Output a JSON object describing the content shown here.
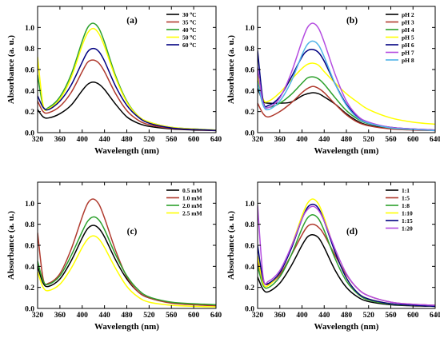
{
  "figure": {
    "background": "#ffffff"
  },
  "chart_data": [
    {
      "type": "line",
      "annotation": "(a)",
      "xlabel": "Wavelength (nm)",
      "ylabel": "Absorbance (a. u.)",
      "xlim": [
        320,
        640
      ],
      "ylim": [
        0,
        1.2
      ],
      "xticks": [
        320,
        360,
        400,
        440,
        480,
        520,
        560,
        600,
        640
      ],
      "yticks": [
        0.0,
        0.2,
        0.4,
        0.6,
        0.8,
        1.0
      ],
      "legend_position": "top-right",
      "grid": false,
      "series": [
        {
          "legend_value": "30",
          "legend_unit": "C",
          "color": "#000000",
          "x": [
            320,
            330,
            340,
            360,
            380,
            400,
            410,
            420,
            430,
            440,
            460,
            480,
            500,
            520,
            560,
            600,
            640
          ],
          "y": [
            0.22,
            0.15,
            0.14,
            0.18,
            0.26,
            0.4,
            0.46,
            0.48,
            0.46,
            0.41,
            0.27,
            0.15,
            0.09,
            0.06,
            0.035,
            0.025,
            0.02
          ]
        },
        {
          "legend_value": "35",
          "legend_unit": "C",
          "color": "#b03a2e",
          "x": [
            320,
            330,
            340,
            360,
            380,
            400,
            410,
            420,
            430,
            440,
            460,
            480,
            500,
            520,
            560,
            600,
            640
          ],
          "y": [
            0.3,
            0.2,
            0.19,
            0.25,
            0.38,
            0.58,
            0.67,
            0.69,
            0.66,
            0.58,
            0.37,
            0.21,
            0.12,
            0.075,
            0.04,
            0.028,
            0.02
          ]
        },
        {
          "legend_value": "40",
          "legend_unit": "C",
          "color": "#2ca02c",
          "x": [
            320,
            330,
            340,
            360,
            380,
            400,
            410,
            420,
            430,
            440,
            460,
            480,
            500,
            520,
            560,
            600,
            640
          ],
          "y": [
            0.55,
            0.25,
            0.24,
            0.34,
            0.55,
            0.87,
            1.0,
            1.04,
            0.99,
            0.86,
            0.54,
            0.3,
            0.16,
            0.1,
            0.05,
            0.035,
            0.025
          ]
        },
        {
          "legend_value": "50",
          "legend_unit": "C",
          "color": "#ffff00",
          "x": [
            320,
            330,
            340,
            360,
            380,
            400,
            410,
            420,
            430,
            440,
            460,
            480,
            500,
            520,
            560,
            600,
            640
          ],
          "y": [
            0.72,
            0.26,
            0.23,
            0.32,
            0.52,
            0.83,
            0.95,
            0.99,
            0.94,
            0.82,
            0.52,
            0.29,
            0.16,
            0.1,
            0.05,
            0.035,
            0.025
          ]
        },
        {
          "legend_value": "60",
          "legend_unit": "C",
          "color": "#000080",
          "x": [
            320,
            330,
            340,
            360,
            380,
            400,
            410,
            420,
            430,
            440,
            460,
            480,
            500,
            520,
            560,
            600,
            640
          ],
          "y": [
            0.35,
            0.24,
            0.22,
            0.3,
            0.45,
            0.67,
            0.77,
            0.8,
            0.77,
            0.68,
            0.44,
            0.26,
            0.15,
            0.09,
            0.045,
            0.03,
            0.022
          ]
        }
      ]
    },
    {
      "type": "line",
      "annotation": "(b)",
      "xlabel": "Wavelength (nm)",
      "ylabel": "Absorbance (a. u.)",
      "xlim": [
        320,
        640
      ],
      "ylim": [
        0,
        1.2
      ],
      "xticks": [
        320,
        360,
        400,
        440,
        480,
        520,
        560,
        600,
        640
      ],
      "yticks": [
        0.0,
        0.2,
        0.4,
        0.6,
        0.8,
        1.0
      ],
      "legend_position": "top-right",
      "grid": false,
      "series": [
        {
          "name": "pH 2",
          "color": "#000000",
          "x": [
            320,
            330,
            340,
            360,
            380,
            400,
            410,
            420,
            430,
            440,
            460,
            480,
            500,
            520,
            560,
            600,
            640
          ],
          "y": [
            0.42,
            0.3,
            0.28,
            0.28,
            0.29,
            0.35,
            0.37,
            0.38,
            0.37,
            0.34,
            0.27,
            0.18,
            0.11,
            0.07,
            0.04,
            0.03,
            0.02
          ]
        },
        {
          "name": "pH 3",
          "color": "#b03a2e",
          "x": [
            320,
            330,
            340,
            360,
            380,
            400,
            410,
            420,
            430,
            440,
            460,
            480,
            500,
            520,
            560,
            600,
            640
          ],
          "y": [
            0.28,
            0.18,
            0.15,
            0.2,
            0.28,
            0.38,
            0.42,
            0.44,
            0.42,
            0.38,
            0.27,
            0.17,
            0.1,
            0.065,
            0.035,
            0.025,
            0.02
          ]
        },
        {
          "name": "pH 4",
          "color": "#2ca02c",
          "x": [
            320,
            330,
            340,
            360,
            380,
            400,
            410,
            420,
            430,
            440,
            460,
            480,
            500,
            520,
            560,
            600,
            640
          ],
          "y": [
            0.5,
            0.26,
            0.24,
            0.28,
            0.36,
            0.47,
            0.52,
            0.53,
            0.51,
            0.46,
            0.33,
            0.21,
            0.13,
            0.085,
            0.045,
            0.03,
            0.025
          ]
        },
        {
          "name": "pH 5",
          "color": "#ffff00",
          "x": [
            320,
            330,
            340,
            360,
            380,
            400,
            410,
            420,
            430,
            440,
            460,
            480,
            500,
            520,
            560,
            600,
            640
          ],
          "y": [
            0.55,
            0.32,
            0.3,
            0.38,
            0.5,
            0.61,
            0.65,
            0.66,
            0.64,
            0.58,
            0.47,
            0.37,
            0.29,
            0.22,
            0.14,
            0.1,
            0.08
          ]
        },
        {
          "name": "pH 6",
          "color": "#000080",
          "x": [
            320,
            330,
            340,
            360,
            380,
            400,
            410,
            420,
            430,
            440,
            460,
            480,
            500,
            520,
            560,
            600,
            640
          ],
          "y": [
            0.78,
            0.3,
            0.26,
            0.34,
            0.52,
            0.72,
            0.78,
            0.79,
            0.76,
            0.68,
            0.46,
            0.27,
            0.15,
            0.09,
            0.05,
            0.035,
            0.025
          ]
        },
        {
          "name": "pH 7",
          "color": "#b44ce0",
          "x": [
            320,
            330,
            340,
            360,
            380,
            400,
            410,
            420,
            430,
            440,
            460,
            480,
            500,
            520,
            560,
            600,
            640
          ],
          "y": [
            0.62,
            0.28,
            0.24,
            0.33,
            0.56,
            0.87,
            1.0,
            1.04,
            0.99,
            0.86,
            0.55,
            0.3,
            0.16,
            0.1,
            0.05,
            0.035,
            0.025
          ]
        },
        {
          "name": "pH 8",
          "color": "#4fb3e8",
          "x": [
            320,
            330,
            340,
            360,
            380,
            400,
            410,
            420,
            430,
            440,
            460,
            480,
            500,
            520,
            560,
            600,
            640
          ],
          "y": [
            0.48,
            0.26,
            0.22,
            0.3,
            0.48,
            0.74,
            0.84,
            0.87,
            0.83,
            0.72,
            0.46,
            0.26,
            0.14,
            0.09,
            0.045,
            0.03,
            0.02
          ]
        }
      ]
    },
    {
      "type": "line",
      "annotation": "(c)",
      "xlabel": "Wavelength (nm)",
      "ylabel": "Absorbance (a. u.)",
      "xlim": [
        320,
        640
      ],
      "ylim": [
        0,
        1.2
      ],
      "xticks": [
        320,
        360,
        400,
        440,
        480,
        520,
        560,
        600,
        640
      ],
      "yticks": [
        0.0,
        0.2,
        0.4,
        0.6,
        0.8,
        1.0
      ],
      "legend_position": "top-right",
      "grid": false,
      "series": [
        {
          "name": "0.5 mM",
          "color": "#000000",
          "x": [
            320,
            330,
            340,
            360,
            380,
            400,
            410,
            420,
            430,
            440,
            460,
            480,
            500,
            520,
            560,
            600,
            640
          ],
          "y": [
            0.4,
            0.24,
            0.21,
            0.28,
            0.45,
            0.67,
            0.76,
            0.79,
            0.76,
            0.68,
            0.46,
            0.28,
            0.16,
            0.1,
            0.055,
            0.04,
            0.03
          ]
        },
        {
          "name": "1.0 mM",
          "color": "#b03a2e",
          "x": [
            320,
            330,
            340,
            360,
            380,
            400,
            410,
            420,
            430,
            440,
            460,
            480,
            500,
            520,
            560,
            600,
            640
          ],
          "y": [
            0.72,
            0.28,
            0.24,
            0.33,
            0.56,
            0.87,
            1.0,
            1.04,
            0.99,
            0.86,
            0.55,
            0.3,
            0.16,
            0.1,
            0.05,
            0.035,
            0.025
          ]
        },
        {
          "name": "2.0 mM",
          "color": "#2ca02c",
          "x": [
            320,
            330,
            340,
            360,
            380,
            400,
            410,
            420,
            430,
            440,
            460,
            480,
            500,
            520,
            560,
            600,
            640
          ],
          "y": [
            0.45,
            0.26,
            0.23,
            0.31,
            0.5,
            0.73,
            0.83,
            0.87,
            0.84,
            0.75,
            0.51,
            0.31,
            0.18,
            0.11,
            0.06,
            0.045,
            0.035
          ]
        },
        {
          "name": "2.5 mM",
          "color": "#ffff00",
          "x": [
            320,
            330,
            340,
            360,
            380,
            400,
            410,
            420,
            430,
            440,
            460,
            480,
            500,
            520,
            560,
            600,
            640
          ],
          "y": [
            0.35,
            0.2,
            0.17,
            0.23,
            0.38,
            0.58,
            0.66,
            0.69,
            0.66,
            0.58,
            0.38,
            0.21,
            0.11,
            0.06,
            0.03,
            0.02,
            0.015
          ]
        }
      ]
    },
    {
      "type": "line",
      "annotation": "(d)",
      "xlabel": "Wavelength (nm)",
      "ylabel": "Absorbance (a. u.)",
      "xlim": [
        320,
        640
      ],
      "ylim": [
        0,
        1.2
      ],
      "xticks": [
        320,
        360,
        400,
        440,
        480,
        520,
        560,
        600,
        640
      ],
      "yticks": [
        0.0,
        0.2,
        0.4,
        0.6,
        0.8,
        1.0
      ],
      "legend_position": "top-right",
      "grid": false,
      "series": [
        {
          "name": "1:1",
          "color": "#000000",
          "x": [
            320,
            330,
            340,
            360,
            380,
            400,
            410,
            420,
            430,
            440,
            460,
            480,
            500,
            520,
            560,
            600,
            640
          ],
          "y": [
            0.3,
            0.18,
            0.16,
            0.24,
            0.4,
            0.6,
            0.68,
            0.7,
            0.67,
            0.58,
            0.36,
            0.2,
            0.11,
            0.065,
            0.035,
            0.025,
            0.02
          ]
        },
        {
          "name": "1:5",
          "color": "#b03a2e",
          "x": [
            320,
            330,
            340,
            360,
            380,
            400,
            410,
            420,
            430,
            440,
            460,
            480,
            500,
            520,
            560,
            600,
            640
          ],
          "y": [
            0.45,
            0.26,
            0.23,
            0.32,
            0.5,
            0.7,
            0.78,
            0.8,
            0.77,
            0.7,
            0.5,
            0.32,
            0.19,
            0.12,
            0.06,
            0.04,
            0.03
          ]
        },
        {
          "name": "1:8",
          "color": "#2ca02c",
          "x": [
            320,
            330,
            340,
            360,
            380,
            400,
            410,
            420,
            430,
            440,
            460,
            480,
            500,
            520,
            560,
            600,
            640
          ],
          "y": [
            0.4,
            0.22,
            0.2,
            0.3,
            0.5,
            0.76,
            0.86,
            0.89,
            0.85,
            0.74,
            0.47,
            0.26,
            0.14,
            0.08,
            0.04,
            0.03,
            0.02
          ]
        },
        {
          "name": "1:10",
          "color": "#ffff00",
          "x": [
            320,
            330,
            340,
            360,
            380,
            400,
            410,
            420,
            430,
            440,
            460,
            480,
            500,
            520,
            560,
            600,
            640
          ],
          "y": [
            0.5,
            0.24,
            0.22,
            0.34,
            0.58,
            0.88,
            1.0,
            1.04,
            0.99,
            0.86,
            0.54,
            0.29,
            0.15,
            0.09,
            0.045,
            0.03,
            0.02
          ]
        },
        {
          "name": "1:15",
          "color": "#000080",
          "x": [
            320,
            330,
            340,
            360,
            380,
            400,
            410,
            420,
            430,
            440,
            460,
            480,
            500,
            520,
            560,
            600,
            640
          ],
          "y": [
            0.6,
            0.27,
            0.24,
            0.34,
            0.56,
            0.85,
            0.96,
            0.99,
            0.95,
            0.83,
            0.53,
            0.29,
            0.15,
            0.09,
            0.045,
            0.03,
            0.02
          ]
        },
        {
          "name": "1:20",
          "color": "#b44ce0",
          "x": [
            320,
            330,
            340,
            360,
            380,
            400,
            410,
            420,
            430,
            440,
            460,
            480,
            500,
            520,
            560,
            600,
            640
          ],
          "y": [
            0.98,
            0.3,
            0.26,
            0.36,
            0.58,
            0.85,
            0.94,
            0.97,
            0.93,
            0.83,
            0.56,
            0.33,
            0.19,
            0.12,
            0.06,
            0.04,
            0.03
          ]
        }
      ]
    }
  ]
}
